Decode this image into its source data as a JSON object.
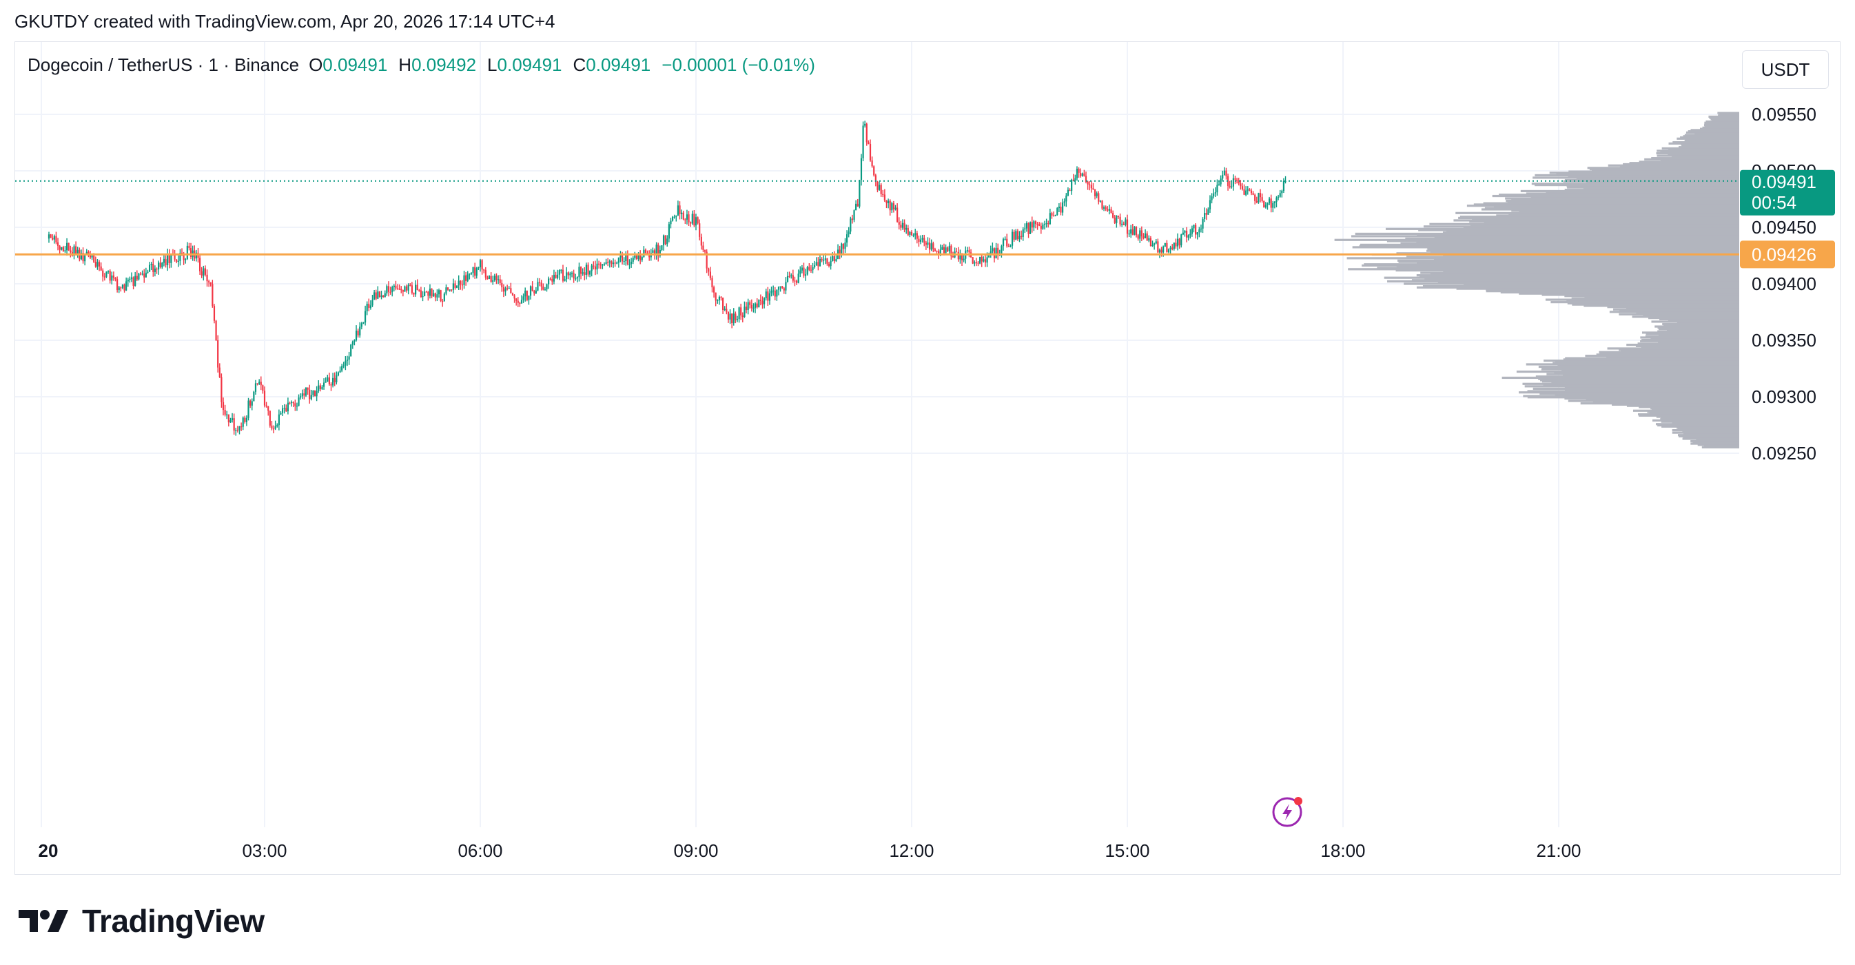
{
  "attribution": "GKUTDY created with TradingView.com, Apr 20, 2026 17:14 UTC+4",
  "legend": {
    "symbol": "Dogecoin / TetherUS · 1 · Binance",
    "open_label": "O",
    "open": "0.09491",
    "high_label": "H",
    "high": "0.09492",
    "low_label": "L",
    "low": "0.09491",
    "close_label": "C",
    "close": "0.09491",
    "change": "−0.00001 (−0.01%)"
  },
  "currency_button": "USDT",
  "brand_name": "TradingView",
  "icons": {
    "brand_logo": "tradingview-logo-icon",
    "lightning": "lightning-bolt-icon"
  },
  "colors": {
    "up": "#089981",
    "down": "#f23645",
    "poc_line": "#f7a64a",
    "profile_bar": "#b2b5be",
    "grid": "#f0f3fa"
  },
  "chart_data": {
    "type": "candlestick",
    "symbol": "Dogecoin / TetherUS",
    "timeframe": "1",
    "exchange": "Binance",
    "y_axis": {
      "ticks": [
        "0.09550",
        "0.09500",
        "0.09450",
        "0.09400",
        "0.09350",
        "0.09300",
        "0.09250"
      ],
      "range": [
        0.09225,
        0.09575
      ]
    },
    "x_axis": {
      "ticks": [
        "20",
        "03:00",
        "06:00",
        "09:00",
        "12:00",
        "15:00",
        "18:00",
        "21:00"
      ]
    },
    "last_price": {
      "value": "0.09491",
      "countdown": "00:54",
      "color": "#089981"
    },
    "poc_price": {
      "value": "0.09426",
      "color": "#f7a64a"
    },
    "approx_path": [
      {
        "time": "00:00",
        "price": 0.0944
      },
      {
        "time": "00:30",
        "price": 0.09425
      },
      {
        "time": "01:00",
        "price": 0.09395
      },
      {
        "time": "01:30",
        "price": 0.09418
      },
      {
        "time": "02:00",
        "price": 0.0943
      },
      {
        "time": "02:15",
        "price": 0.09395
      },
      {
        "time": "02:25",
        "price": 0.09285
      },
      {
        "time": "02:40",
        "price": 0.0927
      },
      {
        "time": "02:55",
        "price": 0.0932
      },
      {
        "time": "03:05",
        "price": 0.09275
      },
      {
        "time": "03:30",
        "price": 0.093
      },
      {
        "time": "04:00",
        "price": 0.09315
      },
      {
        "time": "04:30",
        "price": 0.0939
      },
      {
        "time": "05:00",
        "price": 0.09395
      },
      {
        "time": "05:30",
        "price": 0.0939
      },
      {
        "time": "06:00",
        "price": 0.09415
      },
      {
        "time": "06:30",
        "price": 0.09385
      },
      {
        "time": "07:00",
        "price": 0.09405
      },
      {
        "time": "08:00",
        "price": 0.0942
      },
      {
        "time": "08:30",
        "price": 0.0943
      },
      {
        "time": "08:45",
        "price": 0.09465
      },
      {
        "time": "09:00",
        "price": 0.09455
      },
      {
        "time": "09:15",
        "price": 0.0939
      },
      {
        "time": "09:30",
        "price": 0.0937
      },
      {
        "time": "10:00",
        "price": 0.0939
      },
      {
        "time": "10:30",
        "price": 0.0941
      },
      {
        "time": "11:00",
        "price": 0.09425
      },
      {
        "time": "11:15",
        "price": 0.0947
      },
      {
        "time": "11:20",
        "price": 0.09545
      },
      {
        "time": "11:30",
        "price": 0.0949
      },
      {
        "time": "12:00",
        "price": 0.0944
      },
      {
        "time": "12:30",
        "price": 0.0943
      },
      {
        "time": "13:00",
        "price": 0.0942
      },
      {
        "time": "13:30",
        "price": 0.09445
      },
      {
        "time": "14:00",
        "price": 0.0946
      },
      {
        "time": "14:20",
        "price": 0.095
      },
      {
        "time": "14:40",
        "price": 0.09465
      },
      {
        "time": "15:00",
        "price": 0.0945
      },
      {
        "time": "15:30",
        "price": 0.0943
      },
      {
        "time": "16:00",
        "price": 0.0945
      },
      {
        "time": "16:20",
        "price": 0.09495
      },
      {
        "time": "16:40",
        "price": 0.0948
      },
      {
        "time": "17:00",
        "price": 0.0947
      },
      {
        "time": "17:12",
        "price": 0.09491
      }
    ]
  }
}
